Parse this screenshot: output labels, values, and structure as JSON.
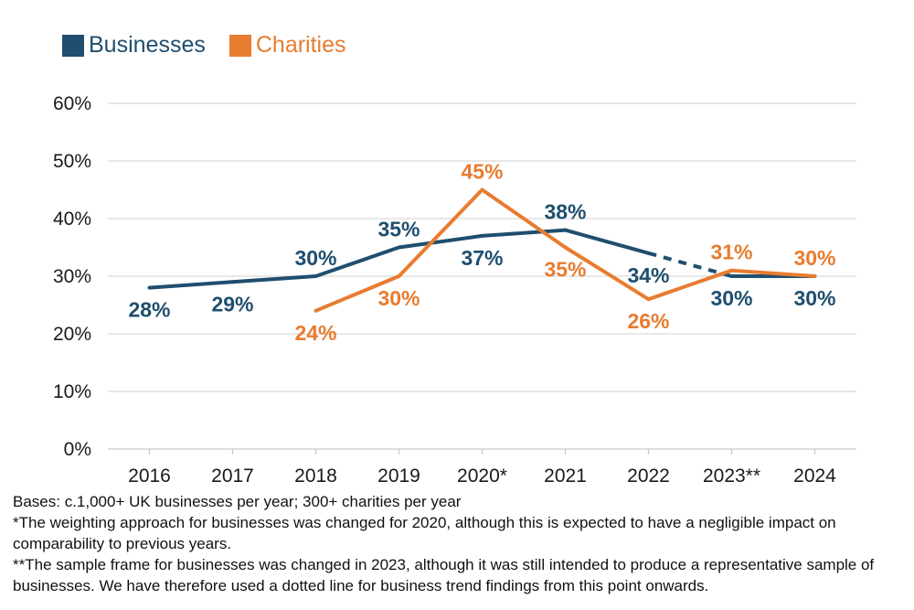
{
  "legend": {
    "items": [
      {
        "label": "Businesses",
        "color": "#1F4E6E"
      },
      {
        "label": "Charities",
        "color": "#E87C30"
      }
    ]
  },
  "chart_data": {
    "type": "line",
    "title": "",
    "categories": [
      "2016",
      "2017",
      "2018",
      "2019",
      "2020*",
      "2021",
      "2022",
      "2023**",
      "2024"
    ],
    "ylim": [
      0,
      60
    ],
    "yticks": [
      0,
      10,
      20,
      30,
      40,
      50,
      60
    ],
    "ytick_suffix": "%",
    "grid": true,
    "legend_position": "top-left",
    "gridline_color": "#D9D9D9",
    "axis_color": "#C9C9C9",
    "tick_label_color": "#1A1A1A",
    "series": [
      {
        "name": "Businesses",
        "color": "#1F4E6E",
        "values": [
          28,
          29,
          30,
          35,
          37,
          38,
          34,
          30,
          30
        ],
        "label_suffix": "%",
        "label_side": [
          "below",
          "below",
          "above",
          "above",
          "below",
          "above",
          "below",
          "below",
          "below"
        ],
        "dashed_pairs": [
          [
            6,
            7
          ]
        ]
      },
      {
        "name": "Charities",
        "color": "#E87C30",
        "values": [
          null,
          null,
          24,
          30,
          45,
          35,
          26,
          31,
          30
        ],
        "label_suffix": "%",
        "label_side": [
          null,
          null,
          "below",
          "below",
          "above",
          "below",
          "below",
          "above",
          "above"
        ],
        "dashed_pairs": []
      }
    ]
  },
  "footnotes": {
    "lines": [
      "Bases: c.1,000+ UK businesses per year; 300+ charities per year",
      "*The weighting approach for businesses was changed for 2020, although this is expected to have a negligible impact on comparability to previous years.",
      "**The sample frame for businesses was changed in 2023, although it was still intended to produce a representative sample of businesses. We have therefore used a dotted line for business trend findings from this point onwards."
    ]
  }
}
